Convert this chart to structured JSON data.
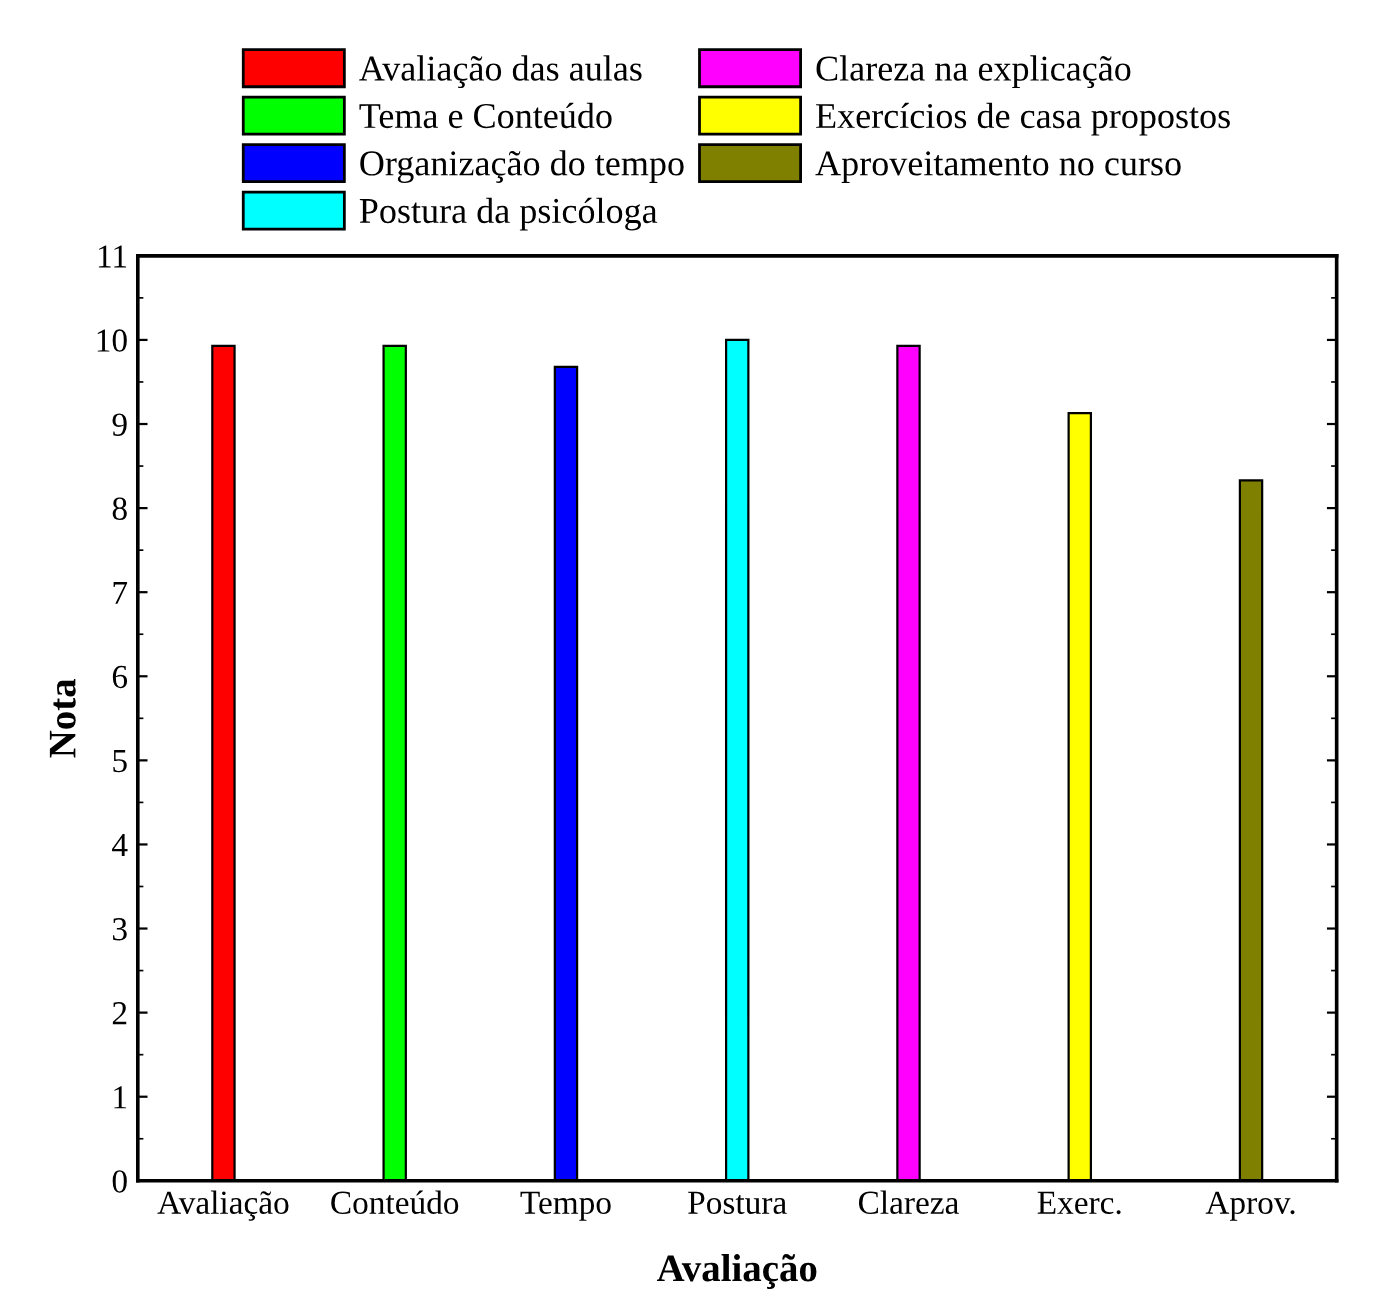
{
  "chart_data": {
    "type": "bar",
    "xlabel": "Avaliação",
    "ylabel": "Nota",
    "categories": [
      "Avaliação",
      "Conteúdo",
      "Tempo",
      "Postura",
      "Clareza",
      "Exerc.",
      "Aprov."
    ],
    "series": [
      {
        "name": "Avaliação das aulas",
        "color": "#ff0000",
        "values": [
          9.93,
          null,
          null,
          null,
          null,
          null,
          null
        ]
      },
      {
        "name": "Tema e Conteúdo",
        "color": "#00ff00",
        "values": [
          null,
          9.93,
          null,
          null,
          null,
          null,
          null
        ]
      },
      {
        "name": "Organização do tempo",
        "color": "#0000ff",
        "values": [
          null,
          null,
          9.68,
          null,
          null,
          null,
          null
        ]
      },
      {
        "name": "Postura da psicóloga",
        "color": "#00ffff",
        "values": [
          null,
          null,
          null,
          10.0,
          null,
          null,
          null
        ]
      },
      {
        "name": "Clareza na explicação",
        "color": "#ff00ff",
        "values": [
          null,
          null,
          null,
          null,
          9.93,
          null,
          null
        ]
      },
      {
        "name": "Exercícios de casa propostos",
        "color": "#ffff00",
        "values": [
          null,
          null,
          null,
          null,
          null,
          9.13,
          null
        ]
      },
      {
        "name": "Aproveitamento no curso",
        "color": "#808000",
        "values": [
          null,
          null,
          null,
          null,
          null,
          null,
          8.33
        ]
      }
    ],
    "ylim": [
      0,
      11
    ],
    "yticks": [
      0,
      1,
      2,
      3,
      4,
      5,
      6,
      7,
      8,
      9,
      10,
      11
    ],
    "grid": false,
    "legend": "top"
  }
}
